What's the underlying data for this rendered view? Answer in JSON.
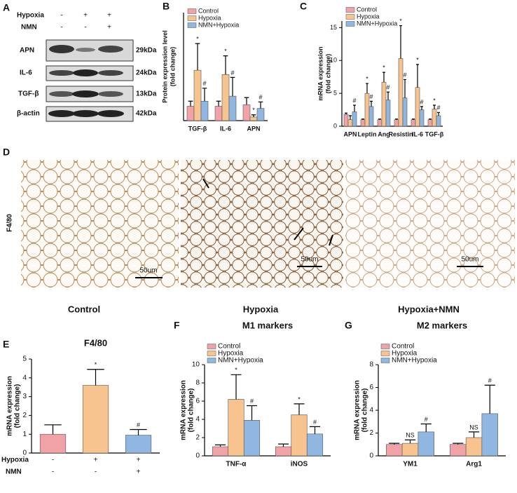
{
  "panel_labels": [
    "A",
    "B",
    "C",
    "D",
    "E",
    "F",
    "G"
  ],
  "blot": {
    "conditions": [
      {
        "name": "Hypoxia",
        "marks": [
          "-",
          "+",
          "+"
        ]
      },
      {
        "name": "NMN",
        "marks": [
          "-",
          "-",
          "+"
        ]
      }
    ],
    "proteins": [
      {
        "name": "APN",
        "size": "29kDa"
      },
      {
        "name": "IL-6",
        "size": "24kDa"
      },
      {
        "name": "TGF-β",
        "size": "13kDa"
      },
      {
        "name": "β-actin",
        "size": "42kDa"
      }
    ]
  },
  "histology": {
    "row_label": "F4/80",
    "images": [
      "Control",
      "Hypoxia",
      "Hypoxia+NMN"
    ],
    "scale_bar": "50um"
  },
  "chart_data": [
    {
      "type": "bar",
      "ylabel": [
        "Protein expression level",
        "(fold change)"
      ],
      "categories": [
        "TGF-β",
        "IL-6",
        "APN"
      ],
      "ylim": [
        0,
        7.5
      ],
      "series": [
        {
          "name": "Control",
          "color": "#f0a2a6",
          "values": [
            1.0,
            1.0,
            1.1
          ],
          "errors": [
            0.35,
            0.35,
            0.5
          ]
        },
        {
          "name": "Hypoxia",
          "color": "#f7c38e",
          "values": [
            3.5,
            3.2,
            0.25
          ],
          "errors": [
            1.85,
            1.3,
            0.15
          ],
          "annotations": [
            "*",
            "*",
            "*"
          ]
        },
        {
          "name": "NMN+Hypoxia",
          "color": "#8fb7e1",
          "values": [
            1.35,
            1.7,
            0.85
          ],
          "errors": [
            0.9,
            1.3,
            0.45
          ],
          "annotations": [
            "#",
            "#",
            "#"
          ]
        }
      ],
      "legend": "upper left"
    },
    {
      "type": "bar",
      "ylabel": [
        "mRNA expression",
        "(fold change)"
      ],
      "categories": [
        "APN",
        "Leptin",
        "Ang",
        "Resistin",
        "IL-6",
        "TGF-β"
      ],
      "ylim": [
        0,
        16
      ],
      "yticks": [
        0,
        5,
        10,
        15
      ],
      "series": [
        {
          "name": "Control",
          "color": "#f0a2a6",
          "values": [
            1.8,
            1.0,
            1.0,
            1.0,
            1.0,
            1.0
          ],
          "errors": [
            0.2,
            0.1,
            0.1,
            0.1,
            0.1,
            0.1
          ]
        },
        {
          "name": "Hypoxia",
          "color": "#f7c38e",
          "values": [
            1.0,
            5.0,
            6.7,
            10.3,
            5.9,
            2.6
          ],
          "errors": [
            0.6,
            1.5,
            1.5,
            5.0,
            3.5,
            0.6
          ],
          "annotations": [
            null,
            "*",
            "*",
            "*",
            "*",
            "*"
          ]
        },
        {
          "name": "NMN+Hypoxia",
          "color": "#8fb7e1",
          "values": [
            2.2,
            3.0,
            4.0,
            4.3,
            2.5,
            1.6
          ],
          "errors": [
            1.0,
            0.8,
            1.2,
            2.8,
            0.5,
            0.5
          ],
          "annotations": [
            "#",
            "#",
            "#",
            "#",
            "#",
            "#"
          ]
        }
      ],
      "legend": "upper left"
    },
    {
      "type": "bar",
      "title": "F4/80",
      "ylabel": [
        "mRNA expression",
        "(fold change)"
      ],
      "ylim": [
        0,
        5
      ],
      "yticks": [
        0,
        1,
        2,
        3,
        4,
        5
      ],
      "values": [
        1.0,
        3.6,
        0.95
      ],
      "errors": [
        0.5,
        0.85,
        0.3
      ],
      "colors": [
        "#f0a2a6",
        "#f7c38e",
        "#8fb7e1"
      ],
      "annotations": [
        null,
        "*",
        "#"
      ],
      "conditions": [
        {
          "name": "Hypoxia",
          "marks": [
            "-",
            "+",
            "+"
          ]
        },
        {
          "name": "NMN",
          "marks": [
            "-",
            "-",
            "+"
          ]
        }
      ]
    },
    {
      "type": "bar",
      "title": "M1 markers",
      "ylabel": [
        "mRNA expression",
        "(fold change)"
      ],
      "categories": [
        "TNF-α",
        "iNOS"
      ],
      "ylim": [
        0,
        10
      ],
      "yticks": [
        0,
        2,
        4,
        6,
        8,
        10
      ],
      "series": [
        {
          "name": "Control",
          "color": "#f0a2a6",
          "values": [
            1.0,
            1.0
          ],
          "errors": [
            0.2,
            0.3
          ]
        },
        {
          "name": "Hypoxia",
          "color": "#f7c38e",
          "values": [
            6.2,
            4.5
          ],
          "errors": [
            2.7,
            1.2
          ],
          "annotations": [
            "*",
            "*"
          ]
        },
        {
          "name": "NMN+Hypoxia",
          "color": "#8fb7e1",
          "values": [
            3.9,
            2.4
          ],
          "errors": [
            1.6,
            0.8
          ],
          "annotations": [
            "#",
            "#"
          ]
        }
      ],
      "legend": "upper left"
    },
    {
      "type": "bar",
      "title": "M2 markers",
      "ylabel": [
        "mRNA expression",
        "(fold change)"
      ],
      "categories": [
        "YM1",
        "Arg1"
      ],
      "ylim": [
        0,
        8
      ],
      "yticks": [
        0,
        2,
        4,
        6,
        8
      ],
      "series": [
        {
          "name": "Control",
          "color": "#f0a2a6",
          "values": [
            1.0,
            1.0
          ],
          "errors": [
            0.1,
            0.1
          ]
        },
        {
          "name": "Hypoxia",
          "color": "#f7c38e",
          "values": [
            1.1,
            1.6
          ],
          "errors": [
            0.3,
            0.5
          ],
          "annotations": [
            "NS",
            "NS"
          ]
        },
        {
          "name": "NMN+Hypoxia",
          "color": "#8fb7e1",
          "values": [
            2.1,
            3.7
          ],
          "errors": [
            0.7,
            2.5
          ],
          "annotations": [
            "#",
            "#"
          ]
        }
      ],
      "legend": "upper left"
    }
  ]
}
